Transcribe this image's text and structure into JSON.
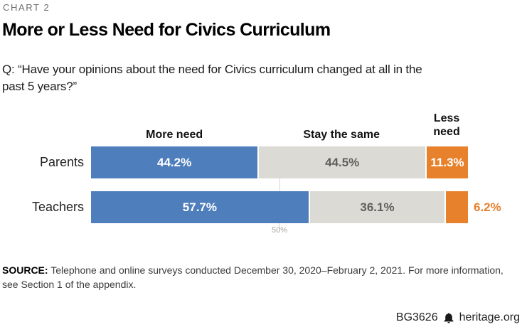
{
  "chart_label": "CHART 2",
  "title": "More or Less Need for Civics Curriculum",
  "question": {
    "lines": [
      "Q: “Have your opinions about the need for Civics curriculum changed at all in the",
      "past 5 years?”"
    ]
  },
  "chart_data": {
    "type": "bar",
    "orientation": "horizontal-stacked",
    "categories": [
      "Parents",
      "Teachers"
    ],
    "series": [
      {
        "name": "More need",
        "color": "#4f7ebc",
        "label_color": "#ffffff",
        "values": [
          44.2,
          57.7
        ]
      },
      {
        "name": "Stay the same",
        "color": "#dcdad4",
        "label_color": "#5f5f5f",
        "values": [
          44.5,
          36.1
        ]
      },
      {
        "name": "Less need",
        "color": "#e8812c",
        "label_color": "#ffffff",
        "values": [
          11.3,
          6.2
        ]
      }
    ],
    "value_suffix": "%",
    "xlim": [
      0,
      100
    ],
    "ticks": [
      {
        "value": 50,
        "label": "50%"
      }
    ],
    "grid": "single 50% vertical reference line behind bars",
    "legend_position": "column headers above first row"
  },
  "source": {
    "label": "SOURCE:",
    "line1_rest": "Telephone and online surveys conducted December 30, 2020–February 2, 2021. For more information,",
    "line2": "see Section 1 of the appendix."
  },
  "footer": {
    "report_id": "BG3626",
    "logo_icon": "liberty-bell-icon",
    "site": "heritage.org"
  }
}
